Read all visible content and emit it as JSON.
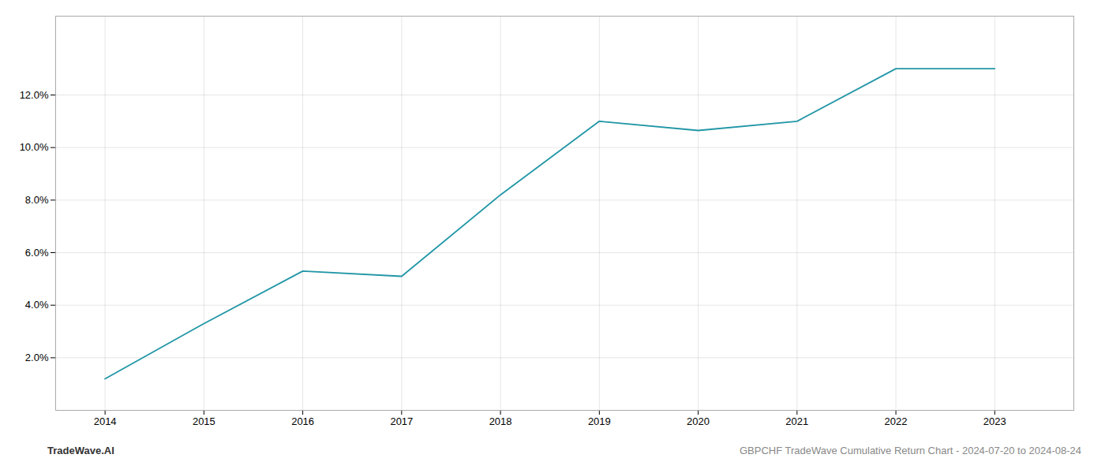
{
  "chart_data": {
    "type": "line",
    "x": [
      2014,
      2015,
      2016,
      2017,
      2018,
      2019,
      2020,
      2021,
      2022,
      2023
    ],
    "values": [
      1.2,
      3.3,
      5.3,
      5.1,
      8.2,
      11.0,
      10.65,
      11.0,
      13.0,
      13.0
    ],
    "color": "#2196a6",
    "xlim": [
      2013.5,
      2023.8
    ],
    "ylim": [
      0.0,
      15.0
    ],
    "xticks": [
      2014,
      2015,
      2016,
      2017,
      2018,
      2019,
      2020,
      2021,
      2022,
      2023
    ],
    "yticks": [
      {
        "value": 2.0,
        "label": "2.0%"
      },
      {
        "value": 4.0,
        "label": "4.0%"
      },
      {
        "value": 6.0,
        "label": "6.0%"
      },
      {
        "value": 8.0,
        "label": "8.0%"
      },
      {
        "value": 10.0,
        "label": "10.0%"
      },
      {
        "value": 12.0,
        "label": "12.0%"
      }
    ],
    "grid": true,
    "annotations": [
      "TradeWave.AI",
      "GBPCHF TradeWave Cumulative Return Chart - 2024-07-20 to 2024-08-24"
    ]
  }
}
